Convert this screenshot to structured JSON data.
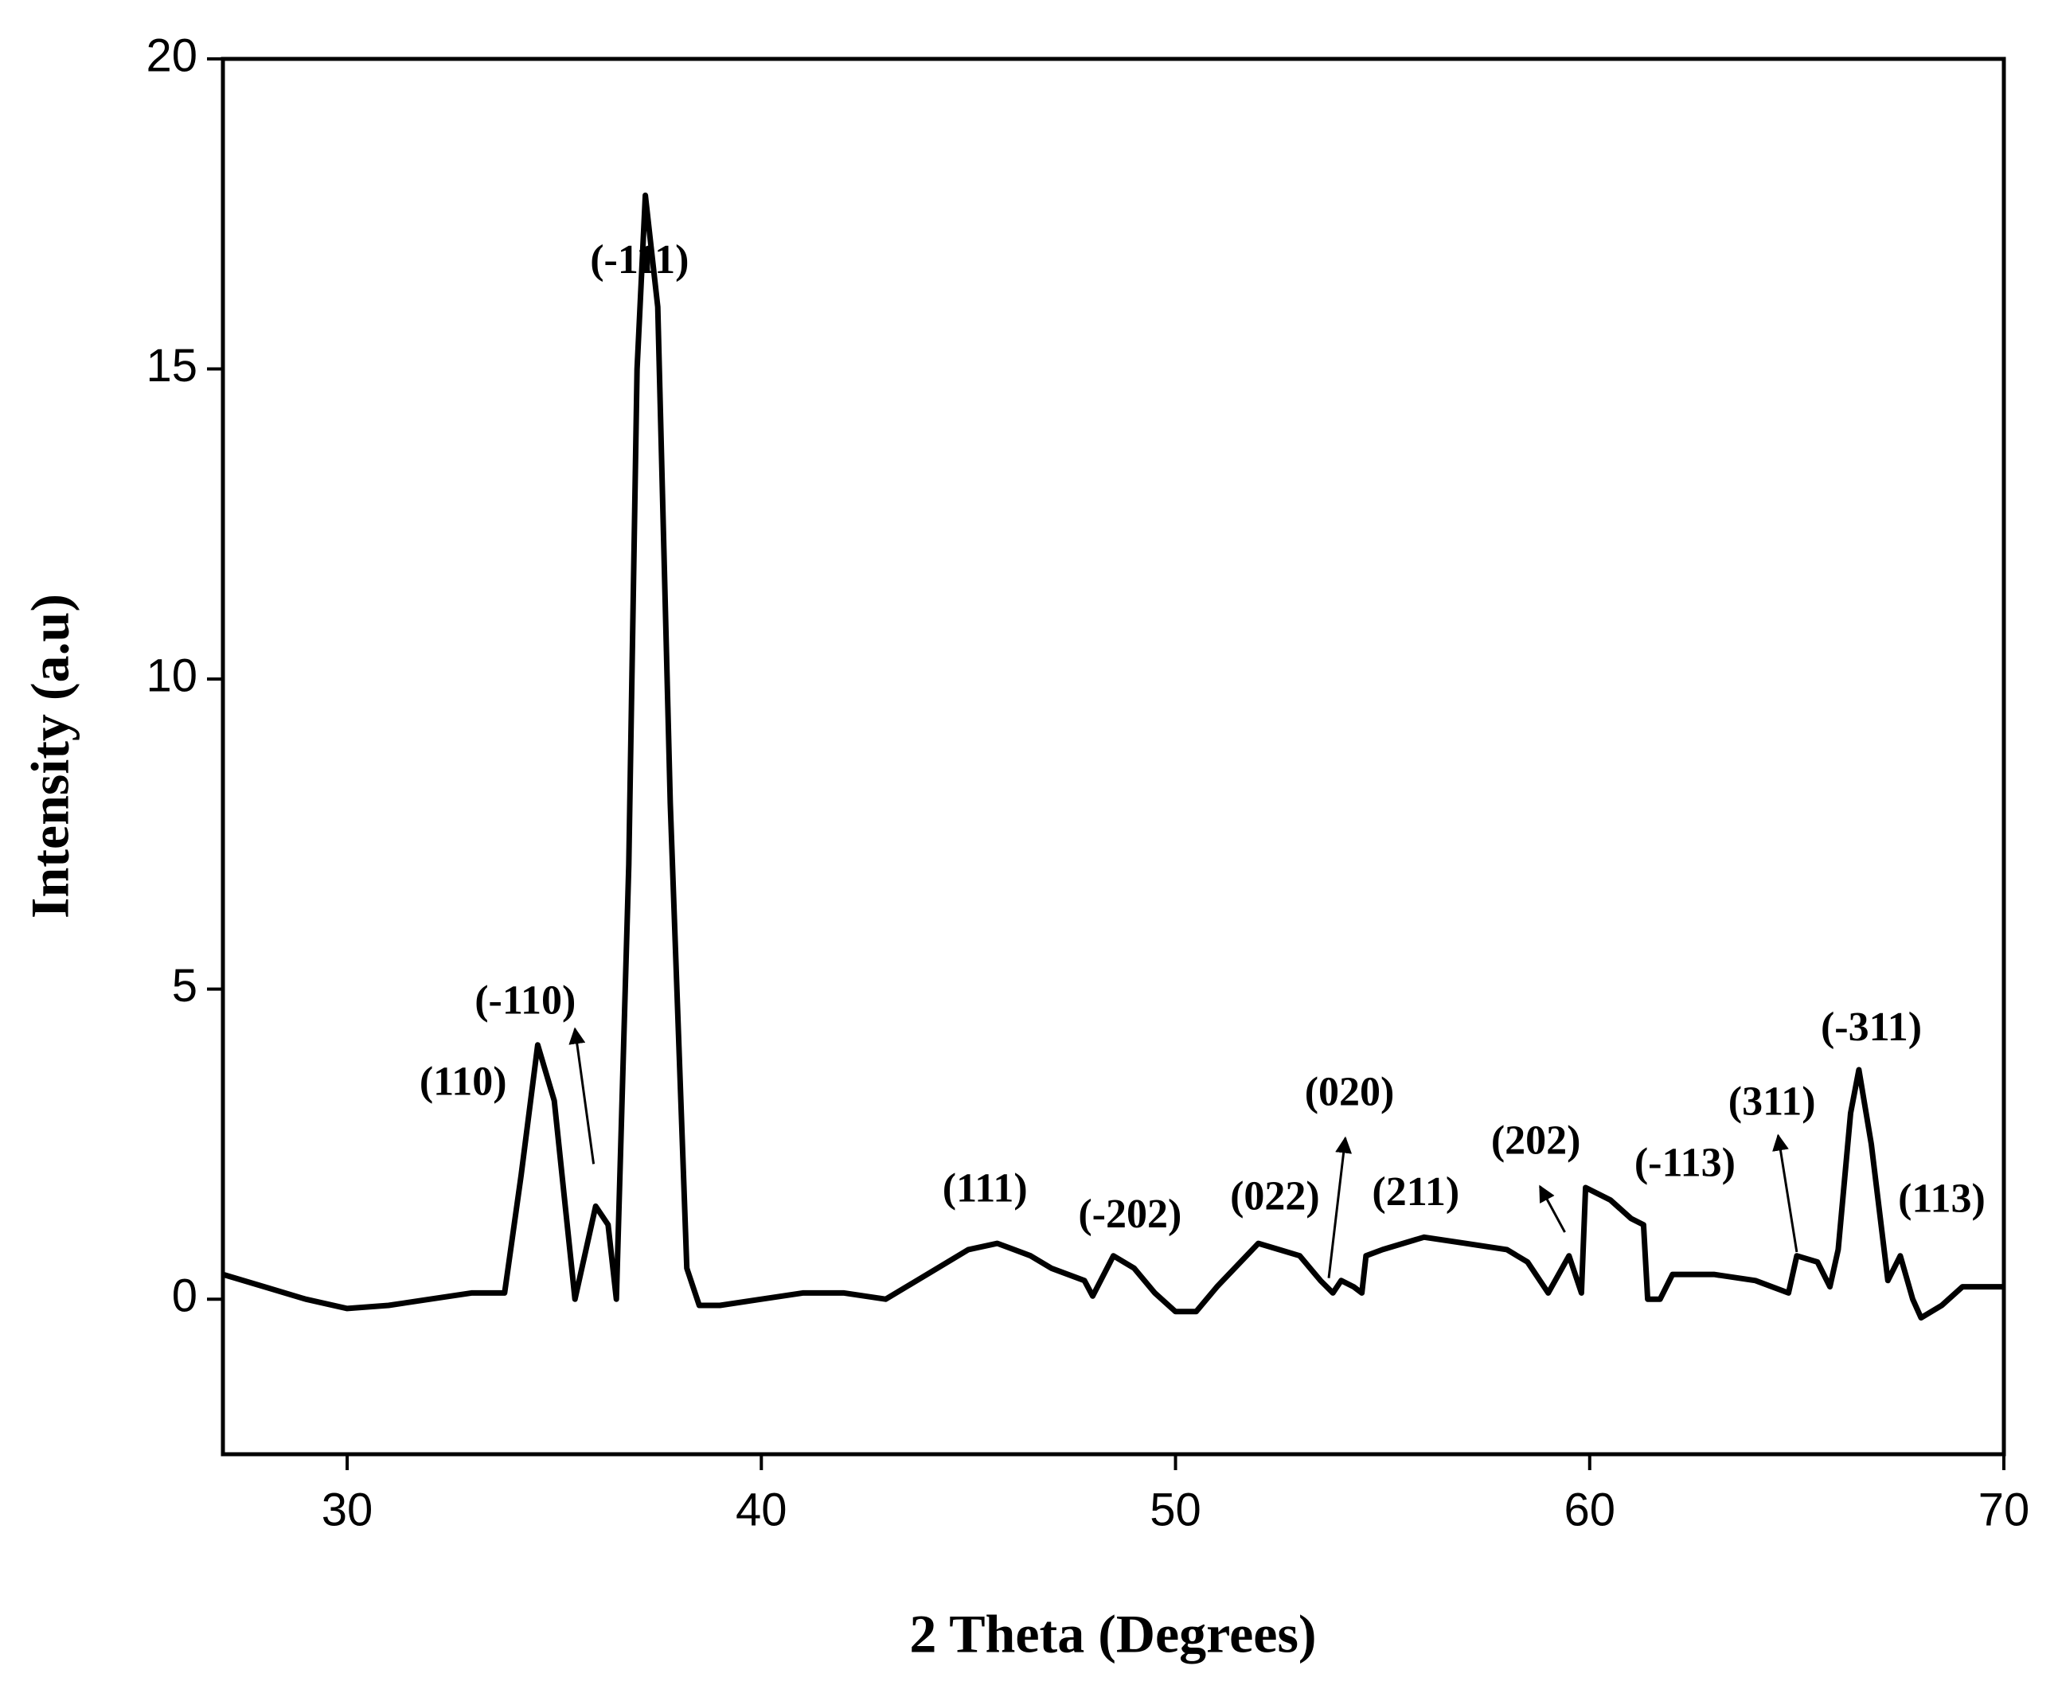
{
  "chart_data": {
    "type": "line",
    "x_label": "2 Theta (Degrees)",
    "y_label": "Intensity (a.u)",
    "xlim": [
      27,
      70
    ],
    "ylim": [
      -2.5,
      20
    ],
    "xticks": [
      30,
      40,
      50,
      60,
      70
    ],
    "yticks": [
      0,
      5,
      10,
      15,
      20
    ],
    "grid": false,
    "series": [
      {
        "color": "#000000",
        "x": [
          27,
          28,
          29,
          30,
          31,
          32,
          33,
          33.8,
          34.2,
          34.6,
          35,
          35.5,
          36,
          36.3,
          36.5,
          36.8,
          37,
          37.2,
          37.5,
          37.8,
          38.2,
          38.5,
          39,
          40,
          41,
          42,
          43,
          44,
          45,
          45.7,
          46.5,
          47,
          47.8,
          48,
          48.5,
          49,
          49.5,
          50,
          50.5,
          51,
          52,
          52.5,
          53,
          53.5,
          53.8,
          54,
          54.3,
          54.5,
          54.6,
          55,
          56,
          57,
          58,
          58.5,
          59,
          59.5,
          59.8,
          59.9,
          60.5,
          61,
          61.3,
          61.4,
          61.7,
          62,
          63,
          64,
          64.8,
          65,
          65.5,
          65.8,
          66,
          66.3,
          66.5,
          66.8,
          67.2,
          67.5,
          67.8,
          68,
          68.5,
          69,
          70
        ],
        "values": [
          0.4,
          0.2,
          0,
          -0.15,
          -0.1,
          0,
          0.1,
          0.1,
          2,
          4.1,
          3.2,
          0,
          1.5,
          1.2,
          0,
          7,
          15,
          17.8,
          16,
          8,
          0.5,
          -0.1,
          -0.1,
          0,
          0.1,
          0.1,
          0,
          0.4,
          0.8,
          0.9,
          0.7,
          0.5,
          0.3,
          0.05,
          0.7,
          0.5,
          0.1,
          -0.2,
          -0.2,
          0.2,
          0.9,
          0.8,
          0.7,
          0.3,
          0.1,
          0.3,
          0.2,
          0.1,
          0.7,
          0.8,
          1.0,
          0.9,
          0.8,
          0.6,
          0.1,
          0.7,
          0.1,
          1.8,
          1.6,
          1.3,
          1.2,
          0,
          0,
          0.4,
          0.4,
          0.3,
          0.1,
          0.7,
          0.6,
          0.2,
          0.8,
          3,
          3.7,
          2.5,
          0.3,
          0.7,
          0,
          -0.3,
          -0.1,
          0.2,
          0.2
        ]
      }
    ],
    "annotations": [
      "(110)",
      "(-110)",
      "(-111)",
      "(111)",
      "(-202)",
      "(022)",
      "(020)",
      "(211)",
      "(202)",
      "(-113)",
      "(311)",
      "(-311)",
      "(113)"
    ]
  }
}
